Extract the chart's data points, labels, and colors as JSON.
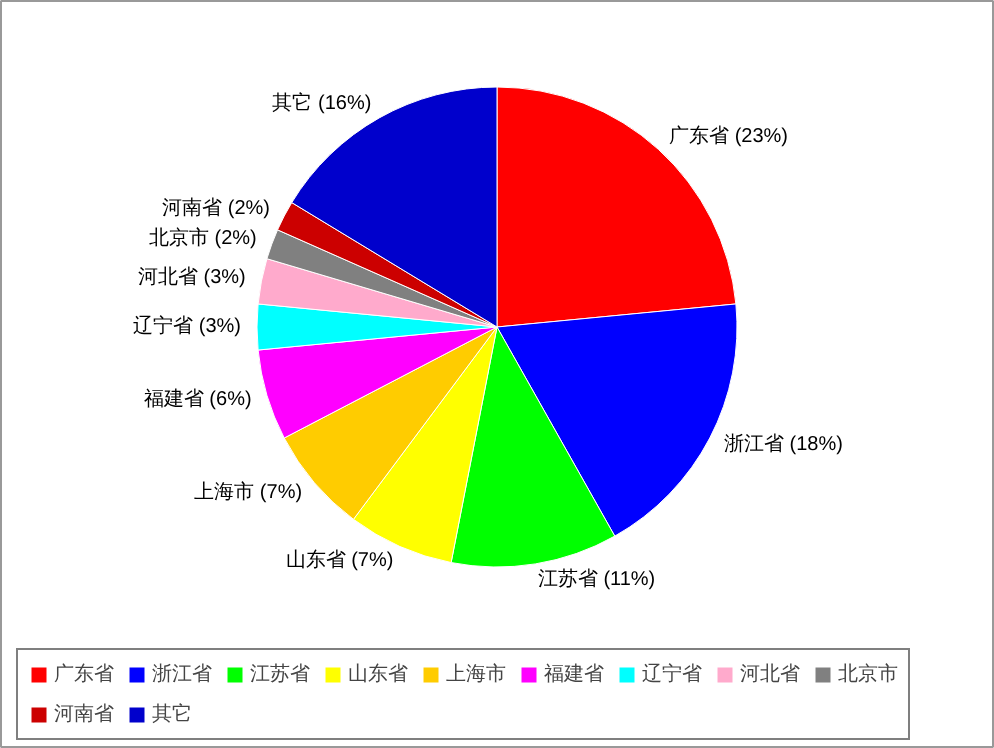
{
  "chart_data": {
    "type": "pie",
    "categories": [
      "广东省",
      "浙江省",
      "江苏省",
      "山东省",
      "上海市",
      "福建省",
      "辽宁省",
      "河北省",
      "北京市",
      "河南省",
      "其它"
    ],
    "values": [
      23,
      18,
      11,
      7,
      7,
      6,
      3,
      3,
      2,
      2,
      16
    ],
    "colors": [
      "#ff0000",
      "#0000ff",
      "#00ff00",
      "#ffff00",
      "#ffcc00",
      "#ff00ff",
      "#00ffff",
      "#ffaacc",
      "#808080",
      "#cc0000",
      "#0000cc"
    ],
    "value_labels": [
      "广东省 (23%)",
      "浙江省 (18%)",
      "江苏省 (11%)",
      "山东省 (7%)",
      "上海市 (7%)",
      "福建省 (6%)",
      "辽宁省 (3%)",
      "河北省 (3%)",
      "北京市 (2%)",
      "河南省 (2%)",
      "其它 (16%)"
    ],
    "legend": "bottom"
  }
}
